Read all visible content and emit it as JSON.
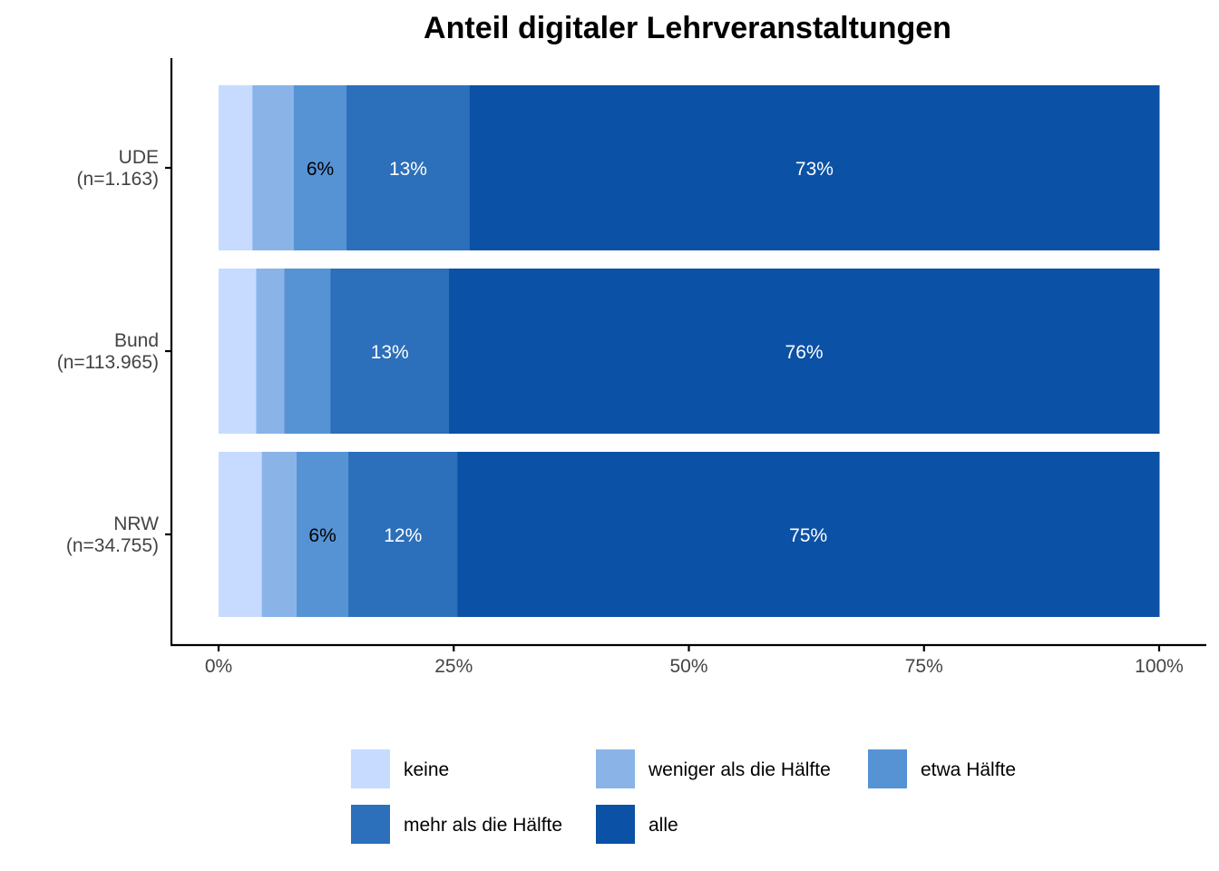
{
  "chart_data": {
    "type": "bar",
    "orientation": "horizontal",
    "stacked": true,
    "title": "Anteil digitaler Lehrveranstaltungen",
    "xlabel": "",
    "ylabel": "",
    "xlim": [
      0,
      100
    ],
    "x_ticks": [
      "0%",
      "25%",
      "50%",
      "75%",
      "100%"
    ],
    "x_tick_values": [
      0,
      25,
      50,
      75,
      100
    ],
    "categories": [
      [
        "UDE",
        "(n=1.163)"
      ],
      [
        "Bund",
        "(n=113.965)"
      ],
      [
        "NRW",
        "(n=34.755)"
      ]
    ],
    "series": [
      {
        "name": "keine",
        "color": "#C6DBFF",
        "values": [
          3.6,
          4.0,
          4.6
        ],
        "labels": [
          "",
          "",
          ""
        ],
        "label_color": "#000000"
      },
      {
        "name": "weniger als die Hälfte",
        "color": "#8AB4E8",
        "values": [
          4.4,
          3.0,
          3.7
        ],
        "labels": [
          "",
          "",
          ""
        ],
        "label_color": "#000000"
      },
      {
        "name": "etwa Hälfte",
        "color": "#5693D4",
        "values": [
          5.6,
          4.9,
          5.5
        ],
        "labels": [
          "6%",
          "",
          "6%"
        ],
        "label_color": "#000000"
      },
      {
        "name": "mehr als die Hälfte",
        "color": "#2C6FBA",
        "values": [
          13.1,
          12.6,
          11.6
        ],
        "labels": [
          "13%",
          "13%",
          "12%"
        ],
        "label_color": "#ffffff"
      },
      {
        "name": "alle",
        "color": "#0B51A5",
        "values": [
          73.3,
          75.5,
          74.6
        ],
        "labels": [
          "73%",
          "76%",
          "75%"
        ],
        "label_color": "#ffffff"
      }
    ],
    "legend": {
      "position": "bottom",
      "rows": [
        [
          "keine",
          "weniger als die Hälfte",
          "etwa Hälfte"
        ],
        [
          "mehr als die Hälfte",
          "alle"
        ]
      ]
    },
    "grid": false
  }
}
